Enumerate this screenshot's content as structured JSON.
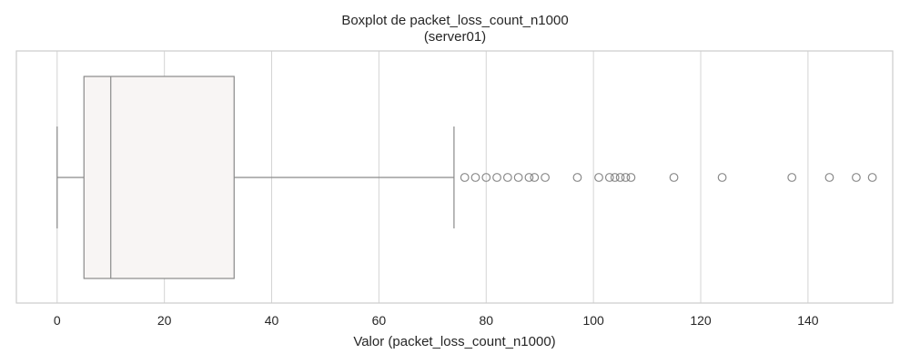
{
  "chart_data": {
    "type": "boxplot",
    "title": "Boxplot de packet_loss_count_n1000",
    "subtitle": "(server01)",
    "xlabel": "Valor (packet_loss_count_n1000)",
    "ylabel": "",
    "xlim": [
      -7.6,
      155.8
    ],
    "xticks": [
      0,
      20,
      40,
      60,
      80,
      100,
      120,
      140
    ],
    "grid": true,
    "orientation": "horizontal",
    "box": {
      "whisker_low": 0,
      "q1": 5,
      "median": 10,
      "q3": 33,
      "whisker_high": 74
    },
    "outliers": [
      76,
      78,
      80,
      82,
      84,
      86,
      88,
      89,
      91,
      97,
      101,
      103,
      104,
      105,
      106,
      107,
      115,
      124,
      137,
      144,
      149,
      152
    ],
    "colors": {
      "box_fill": "#f8f5f4",
      "line": "#8a8a8a",
      "grid": "#d4d4d4",
      "frame": "#cccccc"
    }
  }
}
